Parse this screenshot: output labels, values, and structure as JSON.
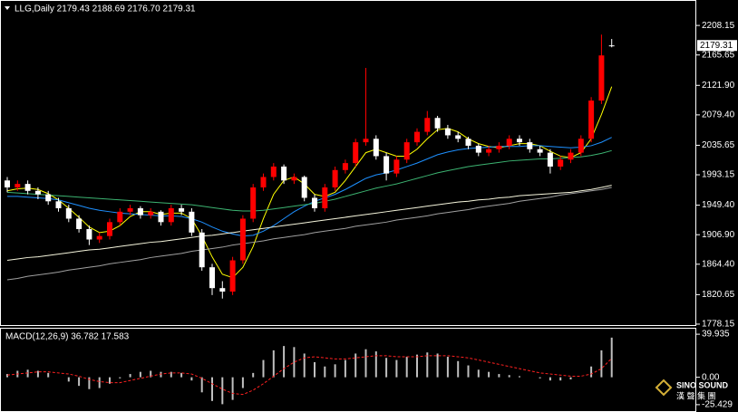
{
  "chart_data": [
    {
      "type": "candlestick",
      "header": "LLG,Daily 2179.43 2188.69 2176.70 2179.31",
      "ylim": [
        1776.8,
        2244.8
      ],
      "yticks": [
        2208.15,
        {
          "value": 2165.65,
          "label": "2165.65"
        },
        {
          "value": 2121.9,
          "label": "2121.90"
        },
        {
          "value": 2079.4,
          "label": "2079.40"
        },
        2035.65,
        1993.15,
        {
          "value": 1949.4,
          "label": "1949.40"
        },
        {
          "value": 1906.9,
          "label": "1906.90"
        },
        {
          "value": 1864.4,
          "label": "1864.40"
        },
        1820.65,
        1778.15
      ],
      "up_color": "#ff0000",
      "down_color": "#ffffff",
      "open": [
        1985,
        1975,
        1980,
        1970,
        1965,
        1955,
        1945,
        1930,
        1915,
        1900,
        1905,
        1925,
        1940,
        1945,
        1935,
        1940,
        1925,
        1945,
        1940,
        1910,
        1860,
        1830,
        1825,
        1870,
        1930,
        1975,
        1990,
        2005,
        1985,
        1990,
        1960,
        1945,
        1975,
        2000,
        2010,
        2040,
        2045,
        2020,
        1995,
        2015,
        2040,
        2055,
        2075,
        2060,
        2050,
        2045,
        2035,
        2025,
        2030,
        2035,
        2045,
        2040,
        2030,
        2025,
        2005,
        2015,
        2025,
        2045,
        2100,
        2179.43
      ],
      "high": [
        1990,
        1985,
        1985,
        1975,
        1970,
        1960,
        1950,
        1935,
        1920,
        1910,
        1930,
        1945,
        1950,
        1948,
        1945,
        1942,
        1950,
        1950,
        1945,
        1915,
        1865,
        1840,
        1875,
        1935,
        1980,
        1995,
        2010,
        2008,
        1995,
        1992,
        1965,
        1980,
        2005,
        2015,
        2045,
        2147,
        2050,
        2025,
        2020,
        2045,
        2060,
        2085,
        2078,
        2065,
        2055,
        2048,
        2038,
        2035,
        2040,
        2050,
        2050,
        2045,
        2035,
        2030,
        2020,
        2030,
        2050,
        2105,
        2195,
        2188.69
      ],
      "low": [
        1968,
        1970,
        1965,
        1958,
        1950,
        1940,
        1925,
        1910,
        1892,
        1895,
        1900,
        1920,
        1935,
        1930,
        1930,
        1920,
        1920,
        1935,
        1905,
        1855,
        1820,
        1815,
        1820,
        1865,
        1925,
        1970,
        1985,
        1980,
        1980,
        1955,
        1940,
        1940,
        1970,
        1995,
        2005,
        2035,
        2015,
        1985,
        1990,
        2010,
        2035,
        2050,
        2055,
        2045,
        2040,
        2030,
        2020,
        2020,
        2025,
        2030,
        2035,
        2025,
        2020,
        1995,
        2000,
        2010,
        2020,
        2040,
        2095,
        2176.7
      ],
      "close": [
        1975,
        1980,
        1970,
        1965,
        1955,
        1945,
        1930,
        1915,
        1900,
        1905,
        1925,
        1940,
        1945,
        1935,
        1940,
        1925,
        1945,
        1940,
        1910,
        1860,
        1830,
        1825,
        1870,
        1930,
        1975,
        1990,
        2005,
        1985,
        1990,
        1960,
        1945,
        1975,
        2000,
        2010,
        2040,
        2045,
        2020,
        1995,
        2015,
        2040,
        2055,
        2075,
        2060,
        2050,
        2045,
        2035,
        2025,
        2030,
        2035,
        2045,
        2040,
        2030,
        2025,
        2005,
        2015,
        2025,
        2045,
        2100,
        2165,
        2179.31
      ],
      "lines": [
        {
          "color": "#ffff00",
          "values": [
            1970,
            1973,
            1974,
            1972,
            1966,
            1957,
            1945,
            1932,
            1918,
            1910,
            1912,
            1920,
            1933,
            1940,
            1940,
            1936,
            1938,
            1938,
            1930,
            1905,
            1875,
            1850,
            1845,
            1860,
            1890,
            1930,
            1965,
            1985,
            1990,
            1980,
            1965,
            1962,
            1968,
            1985,
            2005,
            2025,
            2030,
            2025,
            2020,
            2020,
            2030,
            2045,
            2058,
            2060,
            2055,
            2045,
            2038,
            2034,
            2032,
            2035,
            2038,
            2038,
            2035,
            2027,
            2020,
            2018,
            2025,
            2045,
            2080,
            2120
          ]
        },
        {
          "color": "#1e90ff",
          "values": [
            1962,
            1962,
            1961,
            1960,
            1959,
            1957,
            1953,
            1949,
            1945,
            1942,
            1940,
            1938,
            1937,
            1936,
            1935,
            1934,
            1934,
            1933,
            1930,
            1925,
            1918,
            1912,
            1908,
            1905,
            1906,
            1912,
            1920,
            1930,
            1940,
            1948,
            1955,
            1960,
            1965,
            1972,
            1980,
            1988,
            1993,
            1996,
            2000,
            2005,
            2010,
            2016,
            2022,
            2026,
            2029,
            2031,
            2032,
            2033,
            2034,
            2034,
            2034,
            2035,
            2035,
            2034,
            2033,
            2032,
            2033,
            2035,
            2040,
            2047
          ]
        },
        {
          "color": "#3cb371",
          "values": [
            1968,
            1967,
            1966,
            1965,
            1964,
            1963,
            1962,
            1961,
            1960,
            1959,
            1958,
            1957,
            1956,
            1955,
            1954,
            1953,
            1952,
            1951,
            1950,
            1948,
            1946,
            1944,
            1942,
            1941,
            1941,
            1942,
            1944,
            1946,
            1948,
            1950,
            1952,
            1955,
            1958,
            1962,
            1966,
            1970,
            1974,
            1977,
            1980,
            1984,
            1988,
            1992,
            1996,
            1999,
            2002,
            2005,
            2007,
            2009,
            2011,
            2013,
            2014,
            2015,
            2016,
            2016,
            2017,
            2018,
            2019,
            2021,
            2024,
            2028
          ]
        },
        {
          "color": "#f5f5dc",
          "values": [
            1870,
            1872,
            1874,
            1875,
            1877,
            1879,
            1881,
            1883,
            1885,
            1886,
            1888,
            1890,
            1892,
            1894,
            1896,
            1897,
            1899,
            1901,
            1903,
            1905,
            1906,
            1908,
            1910,
            1912,
            1914,
            1916,
            1918,
            1920,
            1922,
            1924,
            1926,
            1928,
            1930,
            1932,
            1934,
            1936,
            1938,
            1940,
            1942,
            1944,
            1946,
            1948,
            1950,
            1952,
            1954,
            1955,
            1957,
            1958,
            1960,
            1961,
            1963,
            1964,
            1965,
            1966,
            1967,
            1968,
            1970,
            1972,
            1975,
            1978
          ]
        },
        {
          "color": "#a0a0a0",
          "values": [
            1842,
            1844,
            1847,
            1849,
            1851,
            1853,
            1856,
            1858,
            1860,
            1862,
            1865,
            1867,
            1869,
            1871,
            1874,
            1876,
            1878,
            1880,
            1883,
            1885,
            1887,
            1889,
            1892,
            1894,
            1896,
            1898,
            1901,
            1903,
            1905,
            1907,
            1910,
            1912,
            1914,
            1916,
            1919,
            1921,
            1923,
            1925,
            1928,
            1930,
            1932,
            1934,
            1937,
            1939,
            1941,
            1943,
            1946,
            1948,
            1950,
            1952,
            1955,
            1957,
            1959,
            1961,
            1964,
            1966,
            1968,
            1970,
            1972,
            1975
          ]
        }
      ]
    },
    {
      "type": "macd",
      "header": "MACD(12,26,9) 36.782 17.583",
      "ylim": [
        -31.4,
        45.9
      ],
      "yticks": [
        39.935,
        {
          "value": 0,
          "label": "0.00"
        },
        -25.429
      ],
      "histogram_color": "#c0c0c0",
      "signal_color": "#ff2020",
      "histogram": [
        3,
        6,
        7,
        6,
        4,
        0,
        -4,
        -8,
        -11,
        -10,
        -6,
        -1,
        3,
        5,
        6,
        5,
        5,
        4,
        -3,
        -14,
        -22,
        -25,
        -21,
        -10,
        4,
        16,
        25,
        29,
        28,
        22,
        14,
        10,
        12,
        16,
        22,
        26,
        24,
        18,
        16,
        19,
        21,
        23,
        22,
        19,
        15,
        11,
        7,
        5,
        3,
        2,
        1,
        0,
        -1,
        -3,
        -3,
        -2,
        0,
        10,
        25,
        36.782
      ],
      "signal": [
        2,
        3,
        4,
        5,
        5,
        4,
        3,
        1,
        -2,
        -4,
        -5,
        -5,
        -3,
        -1,
        1,
        3,
        4,
        4,
        3,
        -1,
        -6,
        -11,
        -15,
        -16,
        -12,
        -6,
        1,
        8,
        14,
        18,
        19,
        18,
        17,
        17,
        18,
        19,
        20,
        20,
        19,
        19,
        19,
        20,
        20,
        20,
        19,
        18,
        16,
        14,
        12,
        10,
        8,
        6,
        4,
        3,
        2,
        1,
        1,
        3,
        8,
        17.583
      ]
    }
  ],
  "watermark": {
    "brand": "SINO SOUND",
    "chinese": "漢 聲 集 團"
  }
}
